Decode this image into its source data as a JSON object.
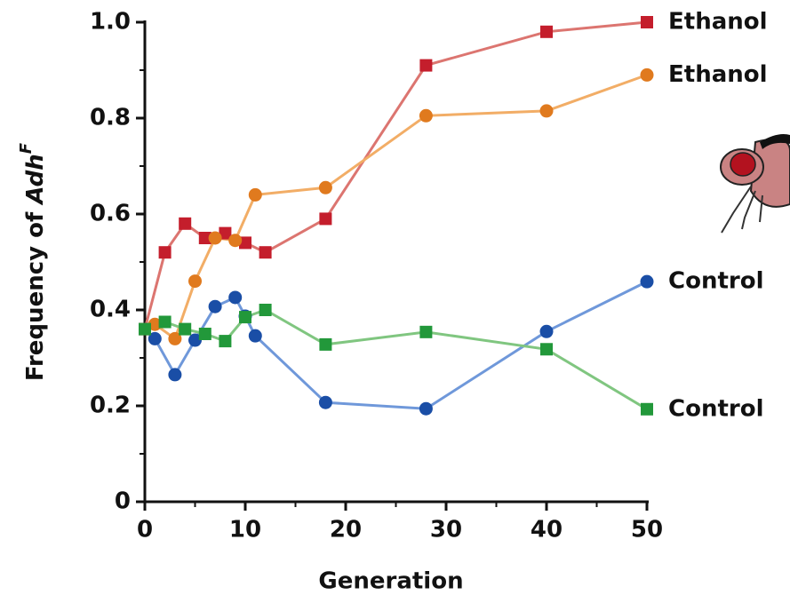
{
  "chart_data": {
    "type": "line",
    "x_label": "Generation",
    "y_label": "Frequency of",
    "y_label_gene": "Adh",
    "y_label_sup": "F",
    "xlim": [
      0,
      50
    ],
    "xticks": [
      0,
      10,
      20,
      30,
      40,
      50
    ],
    "ylim": [
      0,
      1
    ],
    "yticks": [
      0,
      0.2,
      0.4,
      0.6,
      0.8,
      {
        "value": 1,
        "label": "1.0"
      }
    ],
    "series": [
      {
        "name": "Ethanol",
        "marker": "square",
        "color": "#c41e2c",
        "line_color": "#dc7570",
        "x": [
          0,
          2,
          4,
          6,
          8,
          10,
          12,
          18,
          28,
          40,
          50
        ],
        "values": [
          0.36,
          0.52,
          0.58,
          0.55,
          0.56,
          0.54,
          0.52,
          0.59,
          0.91,
          0.98,
          1.0
        ]
      },
      {
        "name": "Ethanol",
        "marker": "circle",
        "color": "#e07a1e",
        "line_color": "#f2ad66",
        "x": [
          1,
          3,
          5,
          7,
          9,
          11,
          18,
          28,
          40,
          50
        ],
        "values": [
          0.37,
          0.34,
          0.46,
          0.55,
          0.545,
          0.64,
          0.655,
          0.805,
          0.815,
          0.89
        ]
      },
      {
        "name": "Control",
        "marker": "circle",
        "color": "#1a4ea6",
        "line_color": "#6f98da",
        "x": [
          1,
          3,
          5,
          7,
          9,
          10,
          11,
          18,
          28,
          40,
          50
        ],
        "values": [
          0.34,
          0.265,
          0.337,
          0.407,
          0.426,
          0.387,
          0.346,
          0.207,
          0.194,
          0.355,
          0.459
        ]
      },
      {
        "name": "Control",
        "marker": "square",
        "color": "#22983a",
        "line_color": "#80c680",
        "x": [
          0,
          2,
          4,
          6,
          8,
          10,
          12,
          18,
          28,
          40,
          50
        ],
        "values": [
          0.36,
          0.375,
          0.36,
          0.35,
          0.335,
          0.385,
          0.4,
          0.328,
          0.354,
          0.318,
          0.193
        ]
      }
    ]
  }
}
